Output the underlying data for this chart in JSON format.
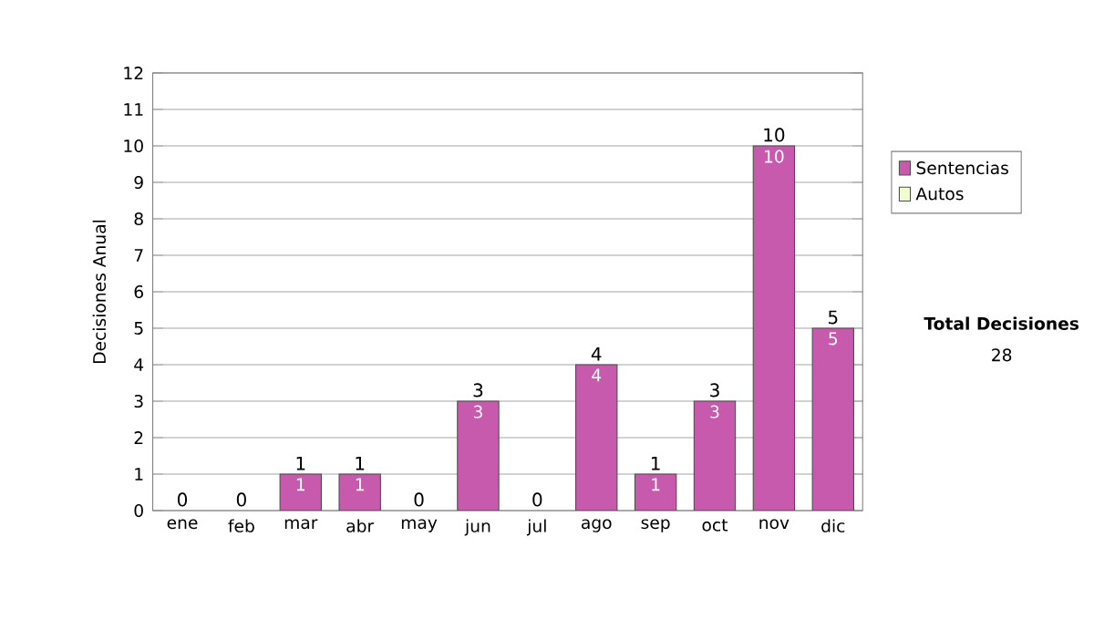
{
  "chart_data": {
    "type": "bar",
    "stacked": true,
    "ylabel": "Decisiones Anual",
    "categories": [
      "ene",
      "feb",
      "mar",
      "abr",
      "may",
      "jun",
      "jul",
      "ago",
      "sep",
      "oct",
      "nov",
      "dic"
    ],
    "series": [
      {
        "name": "Sentencias",
        "color": "#c85aae",
        "values": [
          0,
          0,
          1,
          1,
          0,
          3,
          0,
          4,
          1,
          3,
          10,
          5
        ],
        "value_labels": [
          null,
          null,
          "1",
          "1",
          null,
          "3",
          null,
          "4",
          "1",
          "3",
          "10",
          "5"
        ]
      },
      {
        "name": "Autos",
        "color": "#eeffcc",
        "values": [
          0,
          0,
          0,
          0,
          0,
          0,
          0,
          0,
          0,
          0,
          0,
          0
        ]
      }
    ],
    "totals": [
      "0",
      "0",
      "1",
      "1",
      "0",
      "3",
      "0",
      "4",
      "1",
      "3",
      "10",
      "5"
    ],
    "ylim": [
      0,
      12
    ],
    "yticks": [
      0,
      1,
      2,
      3,
      4,
      5,
      6,
      7,
      8,
      9,
      10,
      11,
      12
    ],
    "grid": "y",
    "legend": "right",
    "annotations": [
      "Total Decisiones",
      "28"
    ]
  }
}
